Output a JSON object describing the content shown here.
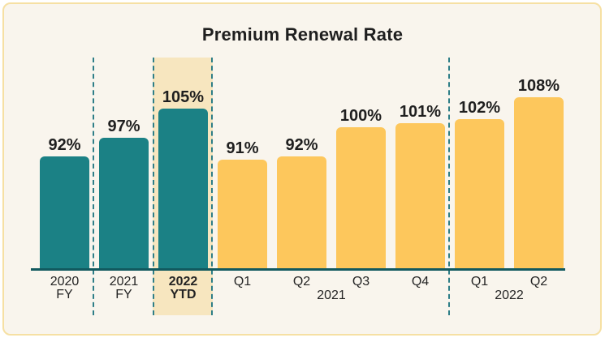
{
  "card": {
    "background": "#F9F5ED",
    "border_color": "#F6E0A3"
  },
  "chart_data": {
    "type": "bar",
    "title": "Premium Renewal Rate",
    "unit": "%",
    "grid": false,
    "legend": false,
    "ylim": [
      61,
      112
    ],
    "categories": [
      "2020 FY",
      "2021 FY",
      "2022 YTD",
      "Q1",
      "Q2",
      "Q3",
      "Q4",
      "Q1",
      "Q2"
    ],
    "values": [
      92,
      97,
      105,
      91,
      92,
      100,
      101,
      102,
      108
    ],
    "bars": [
      {
        "slug": "2020-fy",
        "label_line1": "2020",
        "label_line2": "FY",
        "value": 92,
        "display": "92%",
        "series": "fiscal-year",
        "highlighted": false
      },
      {
        "slug": "2021-fy",
        "label_line1": "2021",
        "label_line2": "FY",
        "value": 97,
        "display": "97%",
        "series": "fiscal-year",
        "highlighted": false
      },
      {
        "slug": "2022-ytd",
        "label_line1": "2022",
        "label_line2": "YTD",
        "value": 105,
        "display": "105%",
        "series": "fiscal-year",
        "highlighted": true
      },
      {
        "slug": "2021-q1",
        "label_line1": "Q1",
        "label_line2": "",
        "value": 91,
        "display": "91%",
        "series": "quarterly",
        "highlighted": false
      },
      {
        "slug": "2021-q2",
        "label_line1": "Q2",
        "label_line2": "",
        "value": 92,
        "display": "92%",
        "series": "quarterly",
        "highlighted": false
      },
      {
        "slug": "2021-q3",
        "label_line1": "Q3",
        "label_line2": "",
        "value": 100,
        "display": "100%",
        "series": "quarterly",
        "highlighted": false
      },
      {
        "slug": "2021-q4",
        "label_line1": "Q4",
        "label_line2": "",
        "value": 101,
        "display": "101%",
        "series": "quarterly",
        "highlighted": false
      },
      {
        "slug": "2022-q1",
        "label_line1": "Q1",
        "label_line2": "",
        "value": 102,
        "display": "102%",
        "series": "quarterly",
        "highlighted": false
      },
      {
        "slug": "2022-q2",
        "label_line1": "Q2",
        "label_line2": "",
        "value": 108,
        "display": "108%",
        "series": "quarterly",
        "highlighted": false
      }
    ],
    "group_labels": [
      {
        "text": "2021",
        "span": "Q1-Q4"
      },
      {
        "text": "2022",
        "span": "Q1-Q2"
      }
    ],
    "colors": {
      "fiscal_year_bar": "#1B8185",
      "quarterly_bar": "#FDC75C",
      "highlight_band": "#F7E6BF",
      "separator": "#2E7E87",
      "axis": "#11595F",
      "label_text": "#1F1F1F"
    }
  }
}
